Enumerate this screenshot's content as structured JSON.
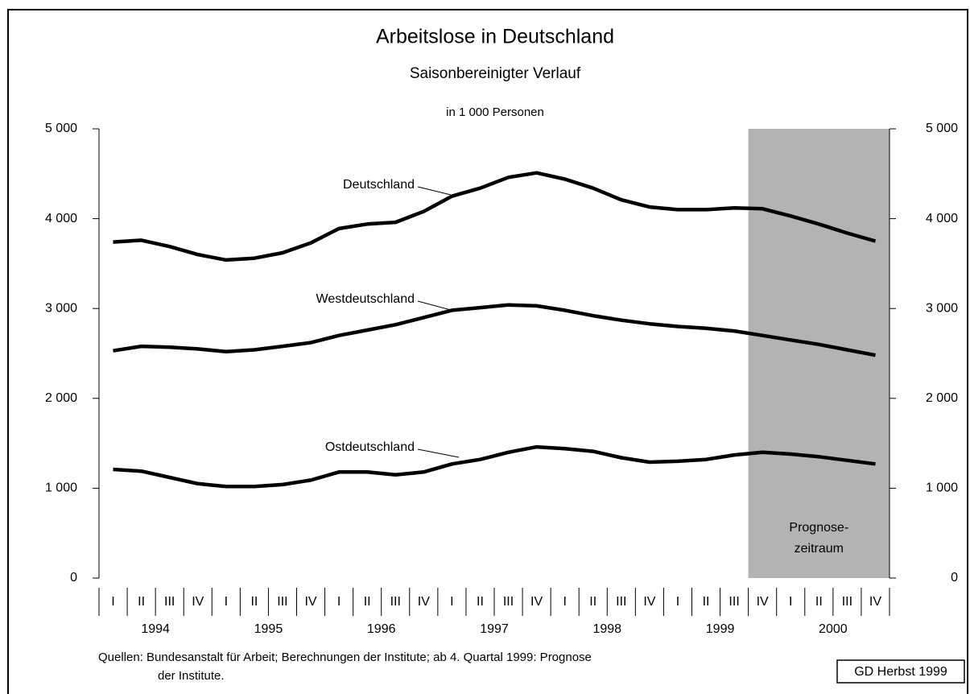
{
  "chart_data": {
    "type": "line",
    "title": "Arbeitslose in Deutschland",
    "subtitle": "Saisonbereinigter Verlauf",
    "y_label": "in 1 000 Personen",
    "categories": [
      "I",
      "II",
      "III",
      "IV",
      "I",
      "II",
      "III",
      "IV",
      "I",
      "II",
      "III",
      "IV",
      "I",
      "II",
      "III",
      "IV",
      "I",
      "II",
      "III",
      "IV",
      "I",
      "II",
      "III",
      "IV",
      "I",
      "II",
      "III",
      "IV"
    ],
    "years": [
      "1994",
      "1995",
      "1996",
      "1997",
      "1998",
      "1999",
      "2000"
    ],
    "series": [
      {
        "name": "Deutschland",
        "color": "#000000",
        "values": [
          3740,
          3760,
          3690,
          3600,
          3540,
          3560,
          3620,
          3730,
          3890,
          3940,
          3960,
          4080,
          4250,
          4340,
          4460,
          4510,
          4440,
          4340,
          4210,
          4130,
          4100,
          4100,
          4120,
          4110,
          4030,
          3940,
          3840,
          3750
        ]
      },
      {
        "name": "Westdeutschland",
        "color": "#000000",
        "values": [
          2530,
          2580,
          2570,
          2550,
          2520,
          2540,
          2580,
          2620,
          2700,
          2760,
          2820,
          2900,
          2980,
          3010,
          3040,
          3030,
          2980,
          2920,
          2870,
          2830,
          2800,
          2780,
          2750,
          2700,
          2650,
          2600,
          2540,
          2480
        ]
      },
      {
        "name": "Ostdeutschland",
        "color": "#000000",
        "values": [
          1210,
          1190,
          1120,
          1050,
          1020,
          1020,
          1040,
          1090,
          1180,
          1180,
          1150,
          1180,
          1270,
          1320,
          1400,
          1460,
          1440,
          1410,
          1340,
          1290,
          1300,
          1320,
          1370,
          1400,
          1380,
          1350,
          1310,
          1270
        ]
      }
    ],
    "ylim": [
      0,
      5000
    ],
    "yticks": [
      0,
      {
        "value": 1000,
        "label": "1 000"
      },
      {
        "value": 2000,
        "label": "2 000"
      },
      {
        "value": 3000,
        "label": "3 000"
      },
      {
        "value": 4000,
        "label": "4 000"
      },
      {
        "value": 5000,
        "label": "5 000"
      }
    ],
    "forecast": {
      "start": 23,
      "color": "#b3b3b3",
      "label": [
        "Prognose-",
        "zeitraum"
      ]
    },
    "source": [
      "Quellen: Bundesanstalt für Arbeit; Berechnungen der Institute; ab 4. Quartal 1999: Prognose",
      "der Institute."
    ],
    "credit": "GD Herbst 1999"
  }
}
